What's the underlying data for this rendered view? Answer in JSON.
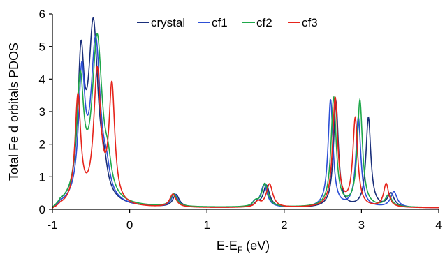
{
  "chart_data": {
    "type": "line",
    "title": "",
    "xlabel_main": "E-E",
    "xlabel_sub": "F",
    "xlabel_unit": " (eV)",
    "ylabel": "Total Fe d orbitals  PDOS",
    "xlim": [
      -1,
      4
    ],
    "ylim": [
      0,
      6
    ],
    "xticks": [
      -1,
      0,
      1,
      2,
      3,
      4
    ],
    "yticks": [
      0,
      1,
      2,
      3,
      4,
      5,
      6
    ],
    "grid": false,
    "legend_position": "top-center",
    "series": [
      {
        "name": "crystal",
        "color": "#1a2f7a",
        "peaks": [
          [
            -0.63,
            4.15,
            0.05
          ],
          [
            -0.47,
            5.4,
            0.075
          ],
          [
            -0.33,
            0.6,
            0.05
          ],
          [
            0.6,
            0.38,
            0.05
          ],
          [
            1.77,
            0.68,
            0.05
          ],
          [
            1.65,
            0.12,
            0.04
          ],
          [
            2.67,
            3.25,
            0.038
          ],
          [
            3.09,
            2.75,
            0.038
          ],
          [
            3.38,
            0.42,
            0.05
          ]
        ],
        "bg": 0.04
      },
      {
        "name": "cf1",
        "color": "#2d4fd6",
        "peaks": [
          [
            -0.62,
            3.75,
            0.05
          ],
          [
            -0.44,
            4.95,
            0.075
          ],
          [
            -0.3,
            0.6,
            0.05
          ],
          [
            0.58,
            0.4,
            0.05
          ],
          [
            1.74,
            0.7,
            0.05
          ],
          [
            1.62,
            0.14,
            0.04
          ],
          [
            2.6,
            3.3,
            0.038
          ],
          [
            2.96,
            2.75,
            0.038
          ],
          [
            3.42,
            0.48,
            0.05
          ]
        ],
        "bg": 0.04
      },
      {
        "name": "cf2",
        "color": "#1fa84a",
        "peaks": [
          [
            -0.64,
            3.6,
            0.055
          ],
          [
            -0.42,
            5.05,
            0.08
          ],
          [
            -0.28,
            0.7,
            0.05
          ],
          [
            0.57,
            0.38,
            0.05
          ],
          [
            1.75,
            0.72,
            0.05
          ],
          [
            1.63,
            0.14,
            0.04
          ],
          [
            2.64,
            3.35,
            0.04
          ],
          [
            2.98,
            3.25,
            0.04
          ],
          [
            3.35,
            0.35,
            0.05
          ]
        ],
        "bg": 0.05
      },
      {
        "name": "cf3",
        "color": "#e6241b",
        "peaks": [
          [
            -0.67,
            3.3,
            0.045
          ],
          [
            -0.42,
            4.05,
            0.055
          ],
          [
            -0.23,
            3.55,
            0.045
          ],
          [
            0.56,
            0.4,
            0.05
          ],
          [
            1.81,
            0.72,
            0.05
          ],
          [
            1.66,
            0.16,
            0.04
          ],
          [
            2.66,
            3.35,
            0.04
          ],
          [
            2.92,
            2.7,
            0.038
          ],
          [
            3.32,
            0.72,
            0.04
          ]
        ],
        "bg": 0.04
      }
    ]
  }
}
